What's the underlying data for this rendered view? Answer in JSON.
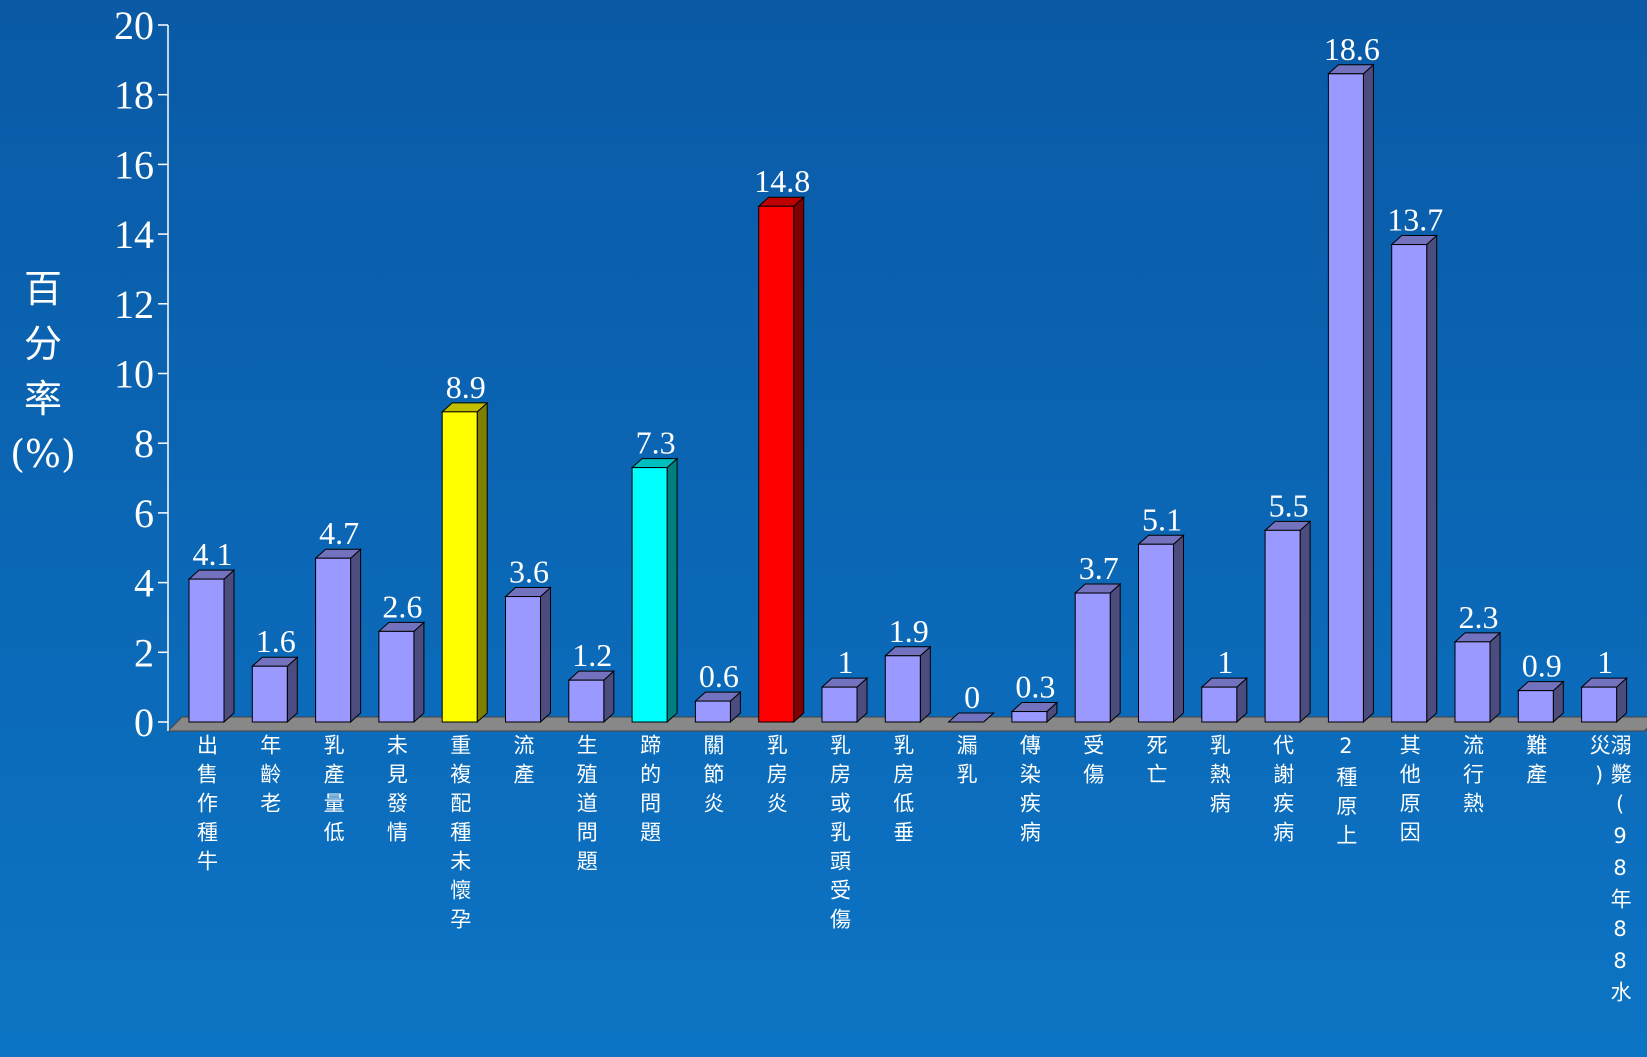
{
  "chart_data": {
    "type": "bar3d",
    "ylabel": "百分率(%)",
    "categories": [
      "出售作種牛",
      "年齡老",
      "乳產量低",
      "未見發情",
      "重複配種未懷孕",
      "流產",
      "生殖道問題",
      "蹄的問題",
      "關節炎",
      "乳房炎",
      "乳房或乳頭受傷",
      "乳房低垂",
      "漏乳",
      "傳染疾病",
      "受傷",
      "死亡",
      "乳熱病",
      "代謝疾病",
      "2種原上",
      "其他原因",
      "流行熱",
      "難產",
      "溺斃(98年88水災)"
    ],
    "values": [
      4.1,
      1.6,
      4.7,
      2.6,
      8.9,
      3.6,
      1.2,
      7.3,
      0.6,
      14.8,
      1,
      1.9,
      0,
      0.3,
      3.7,
      5.1,
      1,
      5.5,
      18.6,
      13.7,
      2.3,
      0.9,
      1
    ],
    "colors": [
      "#9999ff",
      "#9999ff",
      "#9999ff",
      "#9999ff",
      "#ffff00",
      "#9999ff",
      "#9999ff",
      "#00ffff",
      "#9999ff",
      "#ff0000",
      "#9999ff",
      "#9999ff",
      "#9999ff",
      "#9999ff",
      "#9999ff",
      "#9999ff",
      "#9999ff",
      "#9999ff",
      "#9999ff",
      "#9999ff",
      "#9999ff",
      "#9999ff",
      "#9999ff"
    ],
    "ylim": [
      0,
      20
    ],
    "yticks": [
      0,
      2,
      4,
      6,
      8,
      10,
      12,
      14,
      16,
      18,
      20
    ]
  }
}
